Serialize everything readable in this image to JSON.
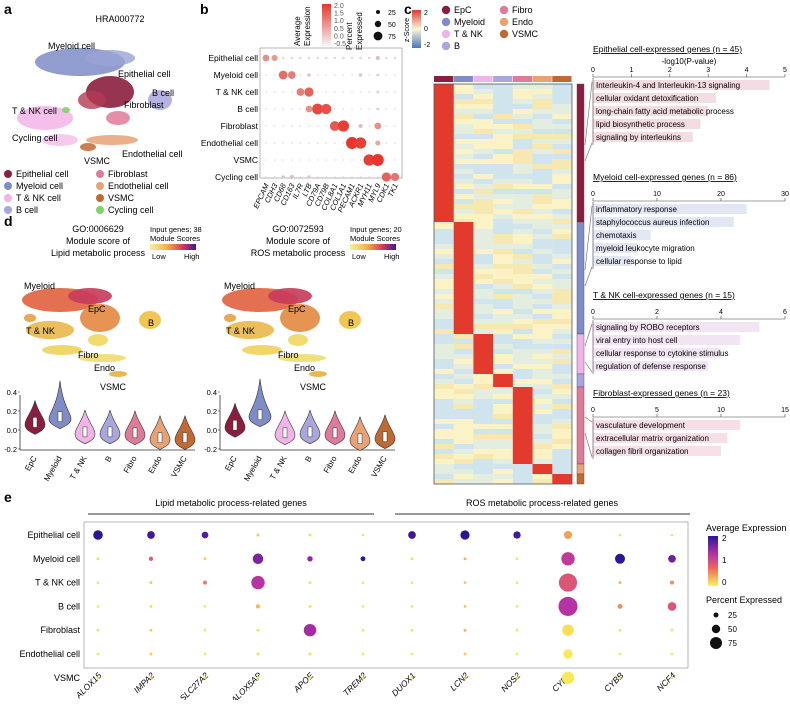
{
  "panel_a": {
    "letter": "a",
    "sample_id": "HRA000772",
    "umap_labels": {
      "myeloid": "Myeloid cell",
      "epithelial": "Epithelial cell",
      "tnk": "T & NK cell",
      "fibroblast": "Fibroblast",
      "bcell": "B cell",
      "cycling": "Cycling cell",
      "vsmc": "VSMC",
      "endothelial": "Endothelial cell"
    },
    "legend": [
      {
        "label": "Epithelial cell",
        "color": "#8b1e3f"
      },
      {
        "label": "Fibroblast",
        "color": "#e07a9a"
      },
      {
        "label": "Myeloid cell",
        "color": "#7f8cc7"
      },
      {
        "label": "Endothelial cell",
        "color": "#e8a276"
      },
      {
        "label": "T & NK cell",
        "color": "#f2b4e6"
      },
      {
        "label": "VSMC",
        "color": "#c06a33"
      },
      {
        "label": "B cell",
        "color": "#a9a6de"
      },
      {
        "label": "Cycling cell",
        "color": "#7ed36b"
      }
    ]
  },
  "panel_b": {
    "letter": "b",
    "legend_avg_title": [
      "Average",
      "Expression"
    ],
    "avg_ticks": [
      "2.0",
      "1.5",
      "1.0",
      "0.5",
      "0.0",
      "-0.5"
    ],
    "legend_pct_title": [
      "Percent",
      "Expressed"
    ],
    "pct_ticks": [
      "25",
      "50",
      "75"
    ],
    "rows": [
      "Epithelial cell",
      "Myeloid cell",
      "T & NK cell",
      "B cell",
      "Fibroblast",
      "Endothelial cell",
      "VSMC",
      "Cycling cell"
    ],
    "genes": [
      "EPCAM",
      "CDH3",
      "CD68",
      "CD163",
      "IL7R",
      "LTB",
      "CD79A",
      "CD79B",
      "COL8A1",
      "COL1A1",
      "PECAM1",
      "ACKR1",
      "MYH11",
      "MYL9",
      "CDK1",
      "TK1"
    ],
    "dots": [
      [
        [
          0,
          0,
          0.45
        ],
        [
          0,
          1,
          0.4
        ],
        [
          0,
          2,
          0.05
        ],
        [
          0,
          3,
          0.05
        ],
        [
          0,
          4,
          0.05
        ],
        [
          0,
          5,
          0.05
        ],
        [
          0,
          6,
          0.05
        ],
        [
          0,
          7,
          0.05
        ],
        [
          0,
          8,
          0.05
        ],
        [
          0,
          9,
          0.05
        ],
        [
          0,
          10,
          0.05
        ],
        [
          0,
          11,
          0.05
        ],
        [
          0,
          12,
          0.05
        ],
        [
          0,
          13,
          0.2
        ],
        [
          0,
          14,
          0.05
        ],
        [
          0,
          15,
          0.05
        ]
      ],
      [
        [
          1,
          2,
          0.65
        ],
        [
          1,
          3,
          0.55
        ],
        [
          1,
          5,
          0.15
        ],
        [
          1,
          11,
          0.15
        ],
        [
          1,
          13,
          0.1
        ]
      ],
      [
        [
          2,
          4,
          0.55
        ],
        [
          2,
          5,
          0.7
        ],
        [
          2,
          13,
          0.1
        ]
      ],
      [
        [
          3,
          5,
          0.45
        ],
        [
          3,
          6,
          0.85
        ],
        [
          3,
          7,
          0.8
        ],
        [
          3,
          13,
          0.1
        ]
      ],
      [
        [
          4,
          8,
          0.75
        ],
        [
          4,
          9,
          0.9
        ],
        [
          4,
          11,
          0.2
        ],
        [
          4,
          13,
          0.45
        ]
      ],
      [
        [
          5,
          10,
          0.95
        ],
        [
          5,
          11,
          0.9
        ],
        [
          5,
          13,
          0.3
        ]
      ],
      [
        [
          6,
          12,
          0.9
        ],
        [
          6,
          13,
          0.95
        ]
      ],
      [
        [
          7,
          2,
          0.15
        ],
        [
          7,
          3,
          0.2
        ],
        [
          7,
          5,
          0.15
        ],
        [
          7,
          14,
          0.7
        ],
        [
          7,
          15,
          0.6
        ]
      ]
    ]
  },
  "panel_c": {
    "letter": "c",
    "zscore_label": "z-Score",
    "zscore_ticks": [
      "2",
      "0",
      "-2"
    ],
    "legend": [
      {
        "label": "EpC",
        "color": "#8b1e3f"
      },
      {
        "label": "Fibro",
        "color": "#e07a9a"
      },
      {
        "label": "Myeloid",
        "color": "#7f8cc7"
      },
      {
        "label": "Endo",
        "color": "#e8a276"
      },
      {
        "label": "T & NK",
        "color": "#f2b4e6"
      },
      {
        "label": "VSMC",
        "color": "#c06a33"
      },
      {
        "label": "B",
        "color": "#a9a6de"
      }
    ],
    "blocks": [
      {
        "title": "Epithelial cell-expressed genes (n = 45)",
        "xlabel": "-log10(P-value)",
        "ticks": [
          "0",
          "1",
          "2",
          "3",
          "4",
          "5"
        ],
        "max": 5,
        "color": "#f3dde3",
        "terms": [
          [
            "Interleukin-4 and Interleukin-13 signaling",
            4.6
          ],
          [
            "cellular oxidant detoxification",
            3.2
          ],
          [
            "long-chain fatty acid metabolic process",
            3.0
          ],
          [
            "lipid biosynthetic process",
            2.8
          ],
          [
            "signaling by interleukins",
            2.6
          ]
        ]
      },
      {
        "title": "Myeloid cell-expressed genes (n = 86)",
        "ticks": [
          "0",
          "10",
          "20",
          "30"
        ],
        "max": 30,
        "color": "#e3e6f3",
        "terms": [
          [
            "inflammatory response",
            24
          ],
          [
            "staphylococcus aureus infection",
            22
          ],
          [
            "chemotaxis",
            9
          ],
          [
            "myeloid leukocyte migration",
            7
          ],
          [
            "cellular response to lipid",
            6
          ]
        ]
      },
      {
        "title": "T & NK cell-expressed genes (n = 15)",
        "ticks": [
          "0",
          "2",
          "4",
          "6"
        ],
        "max": 6,
        "color": "#f3e4f3",
        "terms": [
          [
            "signaling by ROBO receptors",
            5.2
          ],
          [
            "viral entry into host cell",
            4.6
          ],
          [
            "cellular response to cytokine stimulus",
            4.0
          ],
          [
            "regulation of defense response",
            3.6
          ]
        ]
      },
      {
        "title": "Fibroblast-expressed genes (n = 23)",
        "ticks": [
          "0",
          "5",
          "10",
          "15"
        ],
        "max": 15,
        "color": "#f6dfe6",
        "terms": [
          [
            "vasculature development",
            11.5
          ],
          [
            "extracellular matrix organization",
            10.5
          ],
          [
            "collagen fibril organization",
            10.0
          ]
        ]
      }
    ]
  },
  "panel_d": {
    "letter": "d",
    "plots": [
      {
        "go": "GO:0006629",
        "line1": "Module score of",
        "line2": "Lipid metabolic process",
        "input": "Input genes; 38",
        "module": "Module Scores",
        "low": "Low",
        "high": "High"
      },
      {
        "go": "GO:0072593",
        "line1": "Module score of",
        "line2": "ROS metabolic process",
        "input": "Input genes; 20",
        "module": "Module Scores",
        "low": "Low",
        "high": "High"
      }
    ],
    "umap_labels": [
      "Myeloid",
      "EpC",
      "T & NK",
      "Fibro",
      "B",
      "Endo",
      "VSMC"
    ],
    "violin_cats": [
      "EpC",
      "Myeloid",
      "T & NK",
      "B",
      "Fibro",
      "Endo",
      "VSMC"
    ],
    "violin_colors": [
      "#8b1e3f",
      "#7f8cc7",
      "#f2b4e6",
      "#a9a6de",
      "#e07a9a",
      "#e8a276",
      "#c06a33"
    ],
    "yticks": [
      "0.4",
      "0.2",
      "0.0",
      "-0.2"
    ],
    "violin_means": [
      [
        0.08,
        0.14,
        -0.02,
        -0.02,
        -0.03,
        -0.08,
        -0.08
      ],
      [
        0.05,
        0.16,
        -0.03,
        -0.02,
        -0.03,
        -0.09,
        -0.07
      ]
    ]
  },
  "panel_e": {
    "letter": "e",
    "group1": "Lipid metabolic process-related genes",
    "group2": "ROS metabolic process-related genes",
    "rows": [
      "Epithelial cell",
      "Myeloid cell",
      "T & NK cell",
      "B cell",
      "Fibroblast",
      "Endothelial cell",
      "VSMC"
    ],
    "genes": [
      "ALOX15",
      "IMPA2",
      "SLC27A2",
      "ALOX5AP",
      "APOE",
      "TREM2",
      "DUOX1",
      "LCN2",
      "NOS2",
      "CYBA",
      "CYBB",
      "NCF4"
    ],
    "legend_avg": "Average Expression",
    "avg_ticks": [
      "2",
      "1",
      "0"
    ],
    "legend_pct": "Percent Expressed",
    "pct_ticks": [
      "25",
      "50",
      "75"
    ],
    "dots": [
      [
        [
          0,
          0,
          0.4,
          2.0
        ],
        [
          0,
          1,
          0.3,
          1.9
        ],
        [
          0,
          2,
          0.25,
          1.8
        ],
        [
          0,
          3,
          0.05,
          0.2
        ],
        [
          0,
          4,
          0.05,
          0.1
        ],
        [
          0,
          5,
          0.03,
          0.1
        ],
        [
          0,
          6,
          0.3,
          1.9
        ],
        [
          0,
          7,
          0.38,
          2.0
        ],
        [
          0,
          8,
          0.28,
          1.9
        ],
        [
          0,
          9,
          0.32,
          0.4
        ],
        [
          0,
          10,
          0.03,
          0.1
        ],
        [
          0,
          11,
          0.03,
          0.1
        ]
      ],
      [
        [
          1,
          0,
          0.05,
          0.1
        ],
        [
          1,
          1,
          0.12,
          0.8
        ],
        [
          1,
          2,
          0.05,
          0.2
        ],
        [
          1,
          3,
          0.45,
          1.6
        ],
        [
          1,
          4,
          0.18,
          1.5
        ],
        [
          1,
          5,
          0.15,
          2.0
        ],
        [
          1,
          6,
          0.05,
          0.1
        ],
        [
          1,
          7,
          0.05,
          0.3
        ],
        [
          1,
          8,
          0.03,
          0.1
        ],
        [
          1,
          9,
          0.6,
          1.2
        ],
        [
          1,
          10,
          0.42,
          2.0
        ],
        [
          1,
          11,
          0.3,
          1.7
        ]
      ],
      [
        [
          2,
          0,
          0.03,
          0.1
        ],
        [
          2,
          1,
          0.05,
          0.2
        ],
        [
          2,
          2,
          0.1,
          0.6
        ],
        [
          2,
          3,
          0.6,
          1.3
        ],
        [
          2,
          4,
          0.05,
          0.1
        ],
        [
          2,
          5,
          0.03,
          0.1
        ],
        [
          2,
          6,
          0.03,
          0.1
        ],
        [
          2,
          7,
          0.05,
          0.2
        ],
        [
          2,
          8,
          0.03,
          0.1
        ],
        [
          2,
          9,
          0.85,
          0.9
        ],
        [
          2,
          10,
          0.05,
          0.3
        ],
        [
          2,
          11,
          0.1,
          0.5
        ]
      ],
      [
        [
          3,
          0,
          0.03,
          0.1
        ],
        [
          3,
          1,
          0.05,
          0.1
        ],
        [
          3,
          2,
          0.03,
          0.1
        ],
        [
          3,
          3,
          0.12,
          0.3
        ],
        [
          3,
          4,
          0.05,
          0.1
        ],
        [
          3,
          5,
          0.03,
          0.1
        ],
        [
          3,
          6,
          0.03,
          0.1
        ],
        [
          3,
          7,
          0.05,
          0.2
        ],
        [
          3,
          8,
          0.03,
          0.1
        ],
        [
          3,
          9,
          0.9,
          1.3
        ],
        [
          3,
          10,
          0.15,
          0.5
        ],
        [
          3,
          11,
          0.35,
          0.9
        ]
      ],
      [
        [
          4,
          0,
          0.03,
          0.1
        ],
        [
          4,
          1,
          0.05,
          0.2
        ],
        [
          4,
          2,
          0.03,
          0.1
        ],
        [
          4,
          3,
          0.05,
          0.1
        ],
        [
          4,
          4,
          0.55,
          1.4
        ],
        [
          4,
          5,
          0.03,
          0.1
        ],
        [
          4,
          6,
          0.03,
          0.1
        ],
        [
          4,
          7,
          0.05,
          0.3
        ],
        [
          4,
          8,
          0.03,
          0.1
        ],
        [
          4,
          9,
          0.5,
          0.1
        ],
        [
          4,
          10,
          0.03,
          0.1
        ],
        [
          4,
          11,
          0.03,
          0.1
        ]
      ],
      [
        [
          5,
          0,
          0.03,
          0.1
        ],
        [
          5,
          1,
          0.05,
          0.2
        ],
        [
          5,
          2,
          0.03,
          0.1
        ],
        [
          5,
          3,
          0.05,
          0.1
        ],
        [
          5,
          4,
          0.05,
          0.1
        ],
        [
          5,
          5,
          0.03,
          0.1
        ],
        [
          5,
          6,
          0.03,
          0.1
        ],
        [
          5,
          7,
          0.05,
          0.2
        ],
        [
          5,
          8,
          0.03,
          0.1
        ],
        [
          5,
          9,
          0.4,
          0.05
        ],
        [
          5,
          10,
          0.03,
          0.1
        ],
        [
          5,
          11,
          0.03,
          0.1
        ]
      ],
      [
        [
          6,
          0,
          0.03,
          0.1
        ],
        [
          6,
          1,
          0.05,
          0.2
        ],
        [
          6,
          2,
          0.03,
          0.1
        ],
        [
          6,
          3,
          0.05,
          0.1
        ],
        [
          6,
          4,
          0.05,
          0.1
        ],
        [
          6,
          5,
          0.03,
          0.1
        ],
        [
          6,
          6,
          0.03,
          0.1
        ],
        [
          6,
          7,
          0.05,
          0.2
        ],
        [
          6,
          8,
          0.03,
          0.1
        ],
        [
          6,
          9,
          0.55,
          0.05
        ],
        [
          6,
          10,
          0.03,
          0.1
        ],
        [
          6,
          11,
          0.03,
          0.1
        ]
      ]
    ]
  }
}
